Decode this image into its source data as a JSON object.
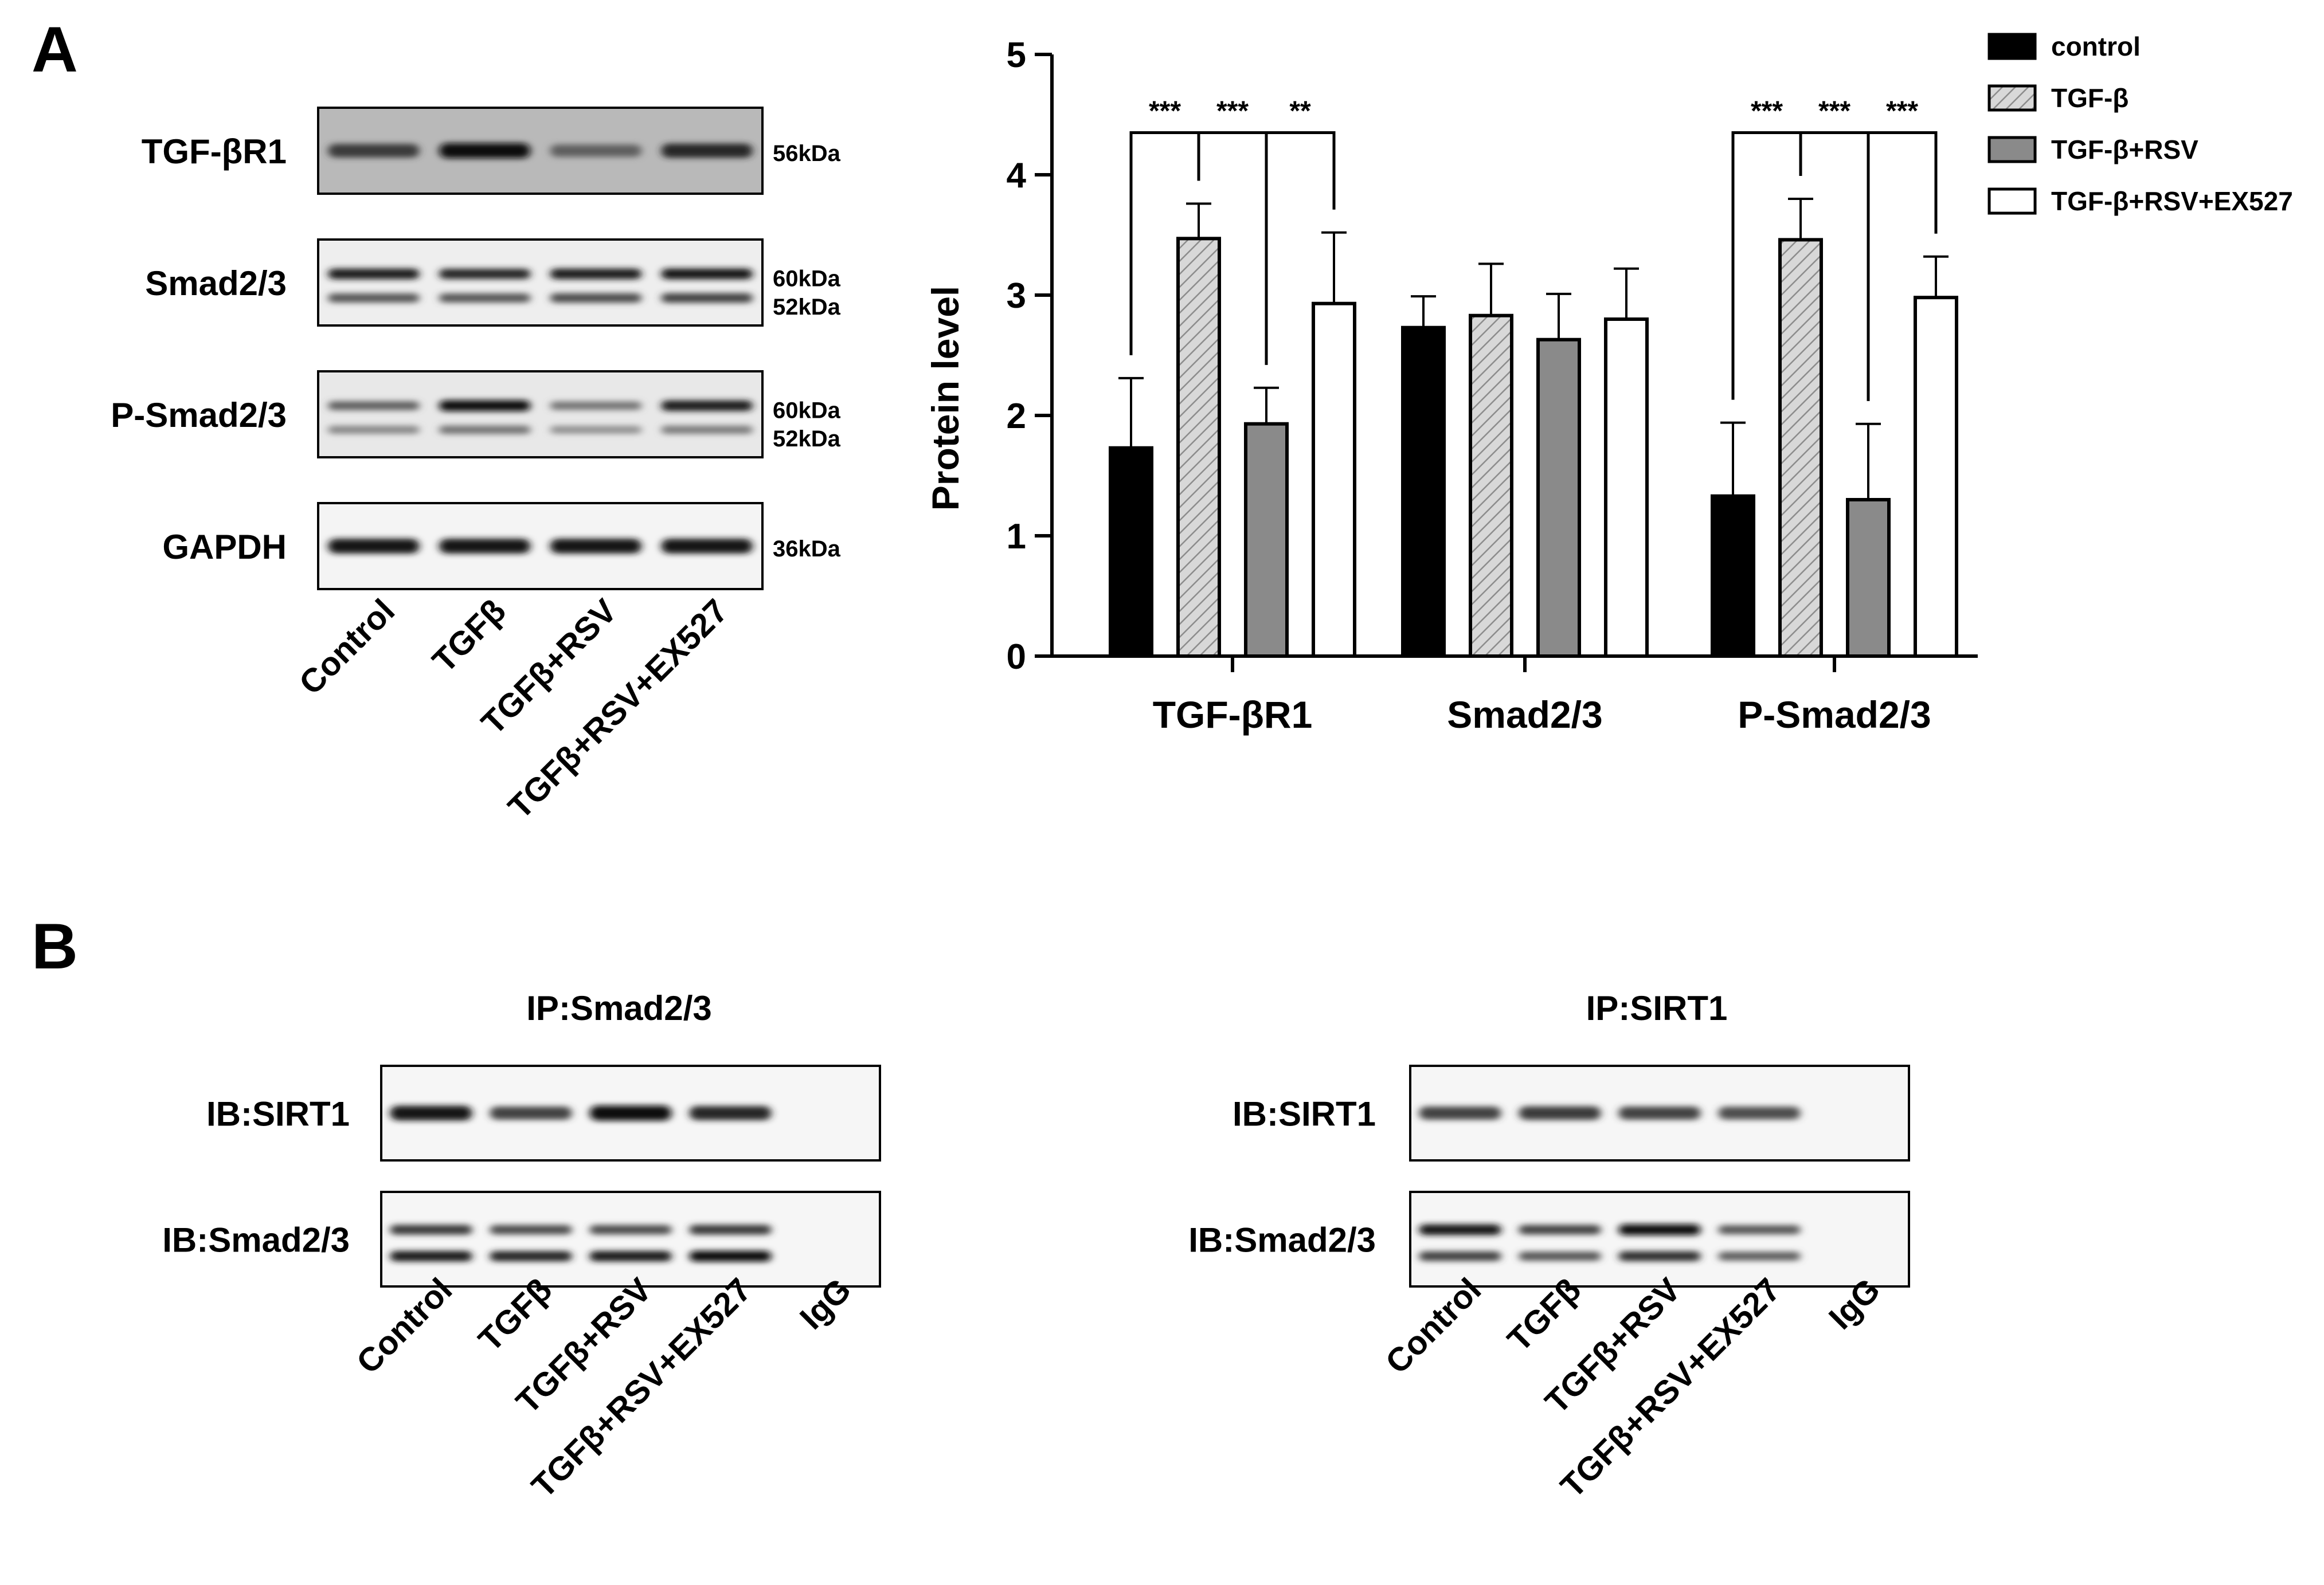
{
  "panel_a": {
    "letter": "A",
    "blot": {
      "rows": [
        {
          "label": "TGF-βR1",
          "markers": [
            "56kDa"
          ],
          "bands": [
            [
              0.75,
              1.0,
              0.55,
              0.85
            ]
          ]
        },
        {
          "label": "Smad2/3",
          "markers": [
            "60kDa",
            "52kDa"
          ],
          "bands": [
            [
              0.9,
              0.85,
              0.9,
              0.95
            ],
            [
              0.6,
              0.6,
              0.65,
              0.7
            ]
          ]
        },
        {
          "label": "P-Smad2/3",
          "markers": [
            "60kDa",
            "52kDa"
          ],
          "bands": [
            [
              0.55,
              1.0,
              0.45,
              0.9
            ],
            [
              0.35,
              0.45,
              0.3,
              0.4
            ]
          ]
        },
        {
          "label": "GAPDH",
          "markers": [
            "36kDa"
          ],
          "bands": [
            [
              0.95,
              0.95,
              0.95,
              0.95
            ]
          ]
        }
      ],
      "lanes": [
        "Control",
        "TGFβ",
        "TGFβ+RSV",
        "TGFβ+RSV+EX527"
      ]
    }
  },
  "chart_data": {
    "type": "bar",
    "title": "",
    "xlabel": "",
    "ylabel": "Protein level",
    "ylim": [
      0,
      5
    ],
    "yticks": [
      "0",
      "1",
      "2",
      "3",
      "4",
      "5"
    ],
    "grid": false,
    "legend_position": "top-right",
    "categories": [
      "TGF-βR1",
      "Smad2/3",
      "P-Smad2/3"
    ],
    "series": [
      {
        "name": "control",
        "fill": "#000000",
        "pattern": "solid",
        "values": [
          1.73,
          2.73,
          1.33
        ],
        "errors": [
          0.58,
          0.26,
          0.61
        ]
      },
      {
        "name": "TGF-β",
        "fill": "#d0d0d0",
        "pattern": "hatch",
        "values": [
          3.47,
          2.83,
          3.46
        ],
        "errors": [
          0.29,
          0.43,
          0.34
        ]
      },
      {
        "name": "TGF-β+RSV",
        "fill": "#8a8a8a",
        "pattern": "solid",
        "values": [
          1.93,
          2.63,
          1.3
        ],
        "errors": [
          0.3,
          0.38,
          0.63
        ]
      },
      {
        "name": "TGF-β+RSV+EX527",
        "fill": "#ffffff",
        "pattern": "solid",
        "values": [
          2.93,
          2.8,
          2.98
        ],
        "errors": [
          0.59,
          0.42,
          0.34
        ]
      }
    ],
    "significance": [
      {
        "category": 0,
        "from": 0,
        "to": 1,
        "label": "***"
      },
      {
        "category": 0,
        "from": 1,
        "to": 2,
        "label": "***"
      },
      {
        "category": 0,
        "from": 2,
        "to": 3,
        "label": "**"
      },
      {
        "category": 2,
        "from": 0,
        "to": 1,
        "label": "***"
      },
      {
        "category": 2,
        "from": 1,
        "to": 2,
        "label": "***"
      },
      {
        "category": 2,
        "from": 2,
        "to": 3,
        "label": "***"
      }
    ]
  },
  "panel_b": {
    "letter": "B",
    "left": {
      "ip_label": "IP:Smad2/3",
      "rows": [
        {
          "label": "IB:SIRT1",
          "bands": [
            [
              0.95,
              0.7,
              1.0,
              0.85,
              0.0
            ]
          ]
        },
        {
          "label": "IB:Smad2/3",
          "bands": [
            [
              0.75,
              0.65,
              0.65,
              0.75,
              0.0
            ],
            [
              0.9,
              0.85,
              0.9,
              1.0,
              0.0
            ]
          ]
        }
      ],
      "lanes": [
        "Control",
        "TGFβ",
        "TGFβ+RSV",
        "TGFβ+RSV+EX527",
        "IgG"
      ]
    },
    "right": {
      "ip_label": "IP:SIRT1",
      "rows": [
        {
          "label": "IB:SIRT1",
          "bands": [
            [
              0.7,
              0.75,
              0.7,
              0.65,
              0.0
            ]
          ]
        },
        {
          "label": "IB:Smad2/3",
          "bands": [
            [
              0.95,
              0.7,
              1.0,
              0.6,
              0.0
            ],
            [
              0.7,
              0.6,
              0.8,
              0.55,
              0.0
            ]
          ]
        }
      ],
      "lanes": [
        "Control",
        "TGFβ",
        "TGFβ+RSV",
        "TGFβ+RSV+EX527",
        "IgG"
      ]
    }
  }
}
